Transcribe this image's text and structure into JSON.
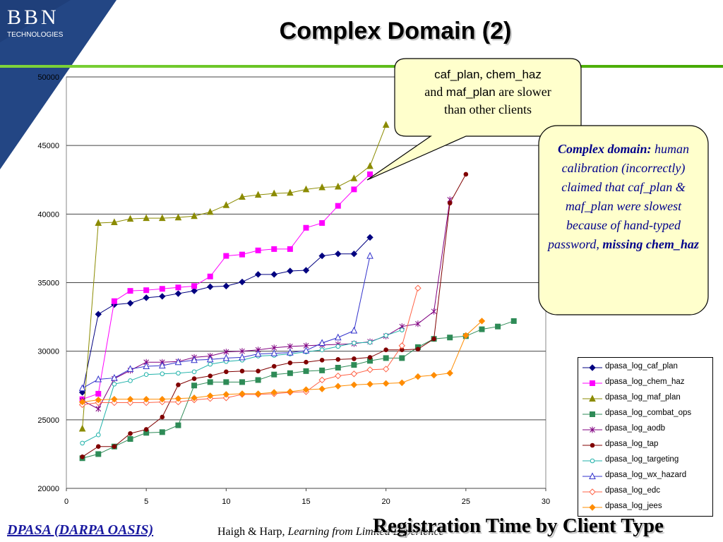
{
  "header": {
    "logo_text": "BBN",
    "logo_subtext": "TECHNOLOGIES",
    "title": "Complex Domain (2)"
  },
  "callout_slow": {
    "line1_a": "caf_plan",
    "line1_sep": ", ",
    "line1_b": "chem_haz",
    "line2_pre": "and ",
    "line2_b": "maf_plan",
    "line2_post": " are slower",
    "line3": "than other clients"
  },
  "callout_complex": {
    "heading": "Complex domain:",
    "body": "human calibration (incorrectly) claimed that caf_plan & maf_plan were slowest because of hand-typed password,",
    "emphasis": "missing chem_haz"
  },
  "footer": {
    "left": "DPASA (DARPA OASIS)",
    "mid_plain": "Haigh & Harp, ",
    "mid_italic": "Learning from Limited Experience",
    "right": "Registration Time by Client Type"
  },
  "colors": {
    "accent_green": "#44a800",
    "logo_blue": "#1f3f7a",
    "callout_fill": "#ffffcc",
    "callout_text_blue": "#00008b"
  },
  "chart_data": {
    "type": "line",
    "title": "",
    "xlabel": "",
    "ylabel": "",
    "xlim": [
      0,
      30
    ],
    "ylim": [
      20000,
      50000
    ],
    "x_ticks": [
      0,
      5,
      10,
      15,
      20,
      25,
      30
    ],
    "y_ticks": [
      20000,
      25000,
      30000,
      35000,
      40000,
      45000,
      50000
    ],
    "grid": "horizontal",
    "legend_position": "bottom-right",
    "series": [
      {
        "name": "dpasa_log_caf_plan",
        "color": "#000080",
        "marker": "diamond",
        "values": [
          27000,
          32700,
          33400,
          33500,
          33900,
          34000,
          34200,
          34400,
          34700,
          34750,
          35050,
          35600,
          35600,
          35850,
          35900,
          36950,
          37100,
          37100,
          38300
        ]
      },
      {
        "name": "dpasa_log_chem_haz",
        "color": "#ff00ff",
        "marker": "square",
        "values": [
          26500,
          26900,
          33650,
          34400,
          34450,
          34550,
          34650,
          34750,
          35450,
          36950,
          37050,
          37350,
          37450,
          37450,
          39000,
          39350,
          40600,
          41800,
          42900
        ]
      },
      {
        "name": "dpasa_log_maf_plan",
        "color": "#8b8b00",
        "marker": "triangle",
        "values": [
          24350,
          39350,
          39400,
          39650,
          39700,
          39700,
          39750,
          39850,
          40150,
          40650,
          41250,
          41400,
          41500,
          41550,
          41800,
          41950,
          42000,
          42600,
          43500,
          46500
        ]
      },
      {
        "name": "dpasa_log_combat_ops",
        "color": "#2e8b57",
        "marker": "square",
        "values": [
          22200,
          22500,
          23050,
          23600,
          24050,
          24100,
          24600,
          27500,
          27750,
          27750,
          27750,
          27900,
          28300,
          28400,
          28550,
          28600,
          28800,
          29000,
          29300,
          29500,
          29500,
          30300,
          30900,
          31000,
          31100,
          31600,
          31800,
          32200
        ]
      },
      {
        "name": "dpasa_log_aodb",
        "color": "#800080",
        "marker": "star",
        "values": [
          26400,
          25800,
          28000,
          28600,
          29200,
          29200,
          29250,
          29550,
          29650,
          29950,
          30000,
          30100,
          30250,
          30350,
          30400,
          30450,
          30500,
          30550,
          30700,
          31100,
          31800,
          32000,
          32900,
          41050
        ]
      },
      {
        "name": "dpasa_log_tap",
        "color": "#800000",
        "marker": "circle",
        "values": [
          22300,
          23050,
          23050,
          24000,
          24300,
          25200,
          27550,
          28000,
          28200,
          28500,
          28550,
          28550,
          28900,
          29150,
          29200,
          29350,
          29400,
          29450,
          29550,
          30100,
          30100,
          30150,
          30900,
          40800,
          42900
        ]
      },
      {
        "name": "dpasa_log_targeting",
        "color": "#20b2aa",
        "marker": "circle-open",
        "values": [
          23300,
          23900,
          27600,
          27850,
          28300,
          28350,
          28400,
          28500,
          29050,
          29250,
          29350,
          29650,
          29700,
          29800,
          29950,
          30100,
          30350,
          30600,
          30650,
          31150,
          31550
        ]
      },
      {
        "name": "dpasa_log_wx_hazard",
        "color": "#3333cc",
        "marker": "triangle-open",
        "values": [
          27300,
          27950,
          28050,
          28700,
          28900,
          28950,
          29200,
          29350,
          29400,
          29500,
          29550,
          29800,
          29850,
          29900,
          30050,
          30600,
          31000,
          31500,
          36950
        ]
      },
      {
        "name": "dpasa_log_edc",
        "color": "#ff6347",
        "marker": "diamond-open",
        "values": [
          26100,
          26250,
          26250,
          26250,
          26250,
          26300,
          26300,
          26450,
          26550,
          26600,
          26850,
          26850,
          26900,
          27000,
          27050,
          27900,
          28200,
          28350,
          28650,
          28700,
          30400,
          34600
        ]
      },
      {
        "name": "dpasa_log_jees",
        "color": "#ff8c00",
        "marker": "diamond",
        "values": [
          26300,
          26450,
          26500,
          26500,
          26500,
          26500,
          26550,
          26600,
          26750,
          26850,
          26900,
          26900,
          27000,
          27050,
          27200,
          27250,
          27450,
          27550,
          27600,
          27650,
          27700,
          28150,
          28250,
          28400,
          31150,
          32200
        ]
      }
    ]
  }
}
